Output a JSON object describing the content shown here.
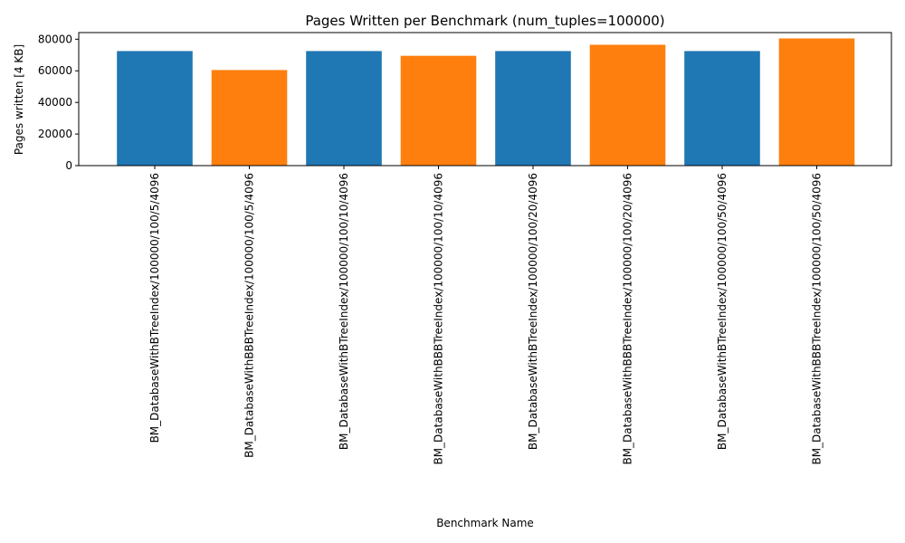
{
  "chart_data": {
    "type": "bar",
    "title": "Pages Written per Benchmark (num_tuples=100000)",
    "xlabel": "Benchmark Name",
    "ylabel": "Pages written [4 KB]",
    "ylim": [
      0,
      84200
    ],
    "yticks": [
      0,
      20000,
      40000,
      60000,
      80000
    ],
    "ytick_labels": [
      "0",
      "20000",
      "40000",
      "60000",
      "80000"
    ],
    "grid": false,
    "categories": [
      "BM_DatabaseWithBTreeIndex/100000/100/5/4096",
      "BM_DatabaseWithBBBTreeIndex/100000/100/5/4096",
      "BM_DatabaseWithBTreeIndex/100000/100/10/4096",
      "BM_DatabaseWithBBBTreeIndex/100000/100/10/4096",
      "BM_DatabaseWithBTreeIndex/100000/100/20/4096",
      "BM_DatabaseWithBBBTreeIndex/100000/100/20/4096",
      "BM_DatabaseWithBTreeIndex/100000/100/50/4096",
      "BM_DatabaseWithBBBTreeIndex/100000/100/50/4096"
    ],
    "values": [
      72500,
      60500,
      72500,
      69500,
      72500,
      76500,
      72500,
      80500
    ],
    "bar_colors": [
      "#1f77b4",
      "#ff7f0e",
      "#1f77b4",
      "#ff7f0e",
      "#1f77b4",
      "#ff7f0e",
      "#1f77b4",
      "#ff7f0e"
    ]
  }
}
